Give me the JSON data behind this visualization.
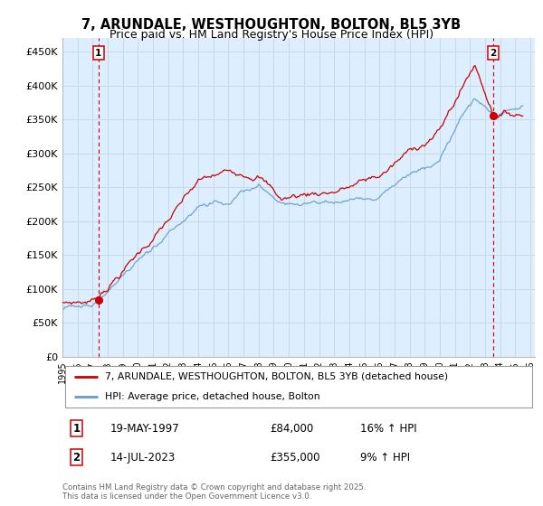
{
  "title1": "7, ARUNDALE, WESTHOUGHTON, BOLTON, BL5 3YB",
  "title2": "Price paid vs. HM Land Registry's House Price Index (HPI)",
  "yticks": [
    0,
    50000,
    100000,
    150000,
    200000,
    250000,
    300000,
    350000,
    400000,
    450000
  ],
  "ytick_labels": [
    "£0",
    "£50K",
    "£100K",
    "£150K",
    "£200K",
    "£250K",
    "£300K",
    "£350K",
    "£400K",
    "£450K"
  ],
  "ylim": [
    0,
    470000
  ],
  "sale1_date": "19-MAY-1997",
  "sale1_price": 84000,
  "sale1_pct": "16% ↑ HPI",
  "sale2_date": "14-JUL-2023",
  "sale2_price": 355000,
  "sale2_pct": "9% ↑ HPI",
  "sale1_x": 1997.38,
  "sale2_x": 2023.54,
  "legend_line1": "7, ARUNDALE, WESTHOUGHTON, BOLTON, BL5 3YB (detached house)",
  "legend_line2": "HPI: Average price, detached house, Bolton",
  "footer": "Contains HM Land Registry data © Crown copyright and database right 2025.\nThis data is licensed under the Open Government Licence v3.0.",
  "line_color_red": "#cc0000",
  "line_color_blue": "#6699cc",
  "grid_color": "#c8daea",
  "bg_color": "#ffffff",
  "plot_bg": "#ddeeff"
}
